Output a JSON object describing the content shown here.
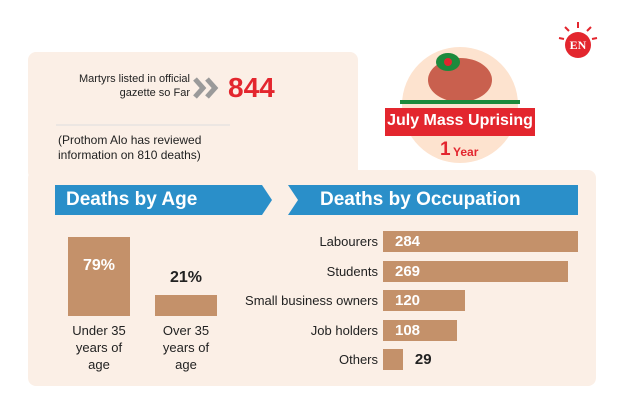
{
  "header": {
    "label": "Martyrs listed in official gazette so Far",
    "total": 844,
    "note": "(Prothom Alo has reviewed information on 810 deaths)"
  },
  "badge": {
    "title": "July Mass Uprising",
    "year_number": "1",
    "year_word": "Year",
    "logo": "EN"
  },
  "chart_data": [
    {
      "type": "bar",
      "title": "Deaths by Age",
      "categories": [
        "Under 35 years of age",
        "Over 35 years of age"
      ],
      "values": [
        79,
        21
      ],
      "value_labels": [
        "79%",
        "21%"
      ],
      "color": "#c4916a"
    },
    {
      "type": "barh",
      "title": "Deaths by Occupation",
      "categories": [
        "Labourers",
        "Students",
        "Small business owners",
        "Job holders",
        "Others"
      ],
      "values": [
        284,
        269,
        120,
        108,
        29
      ],
      "color": "#c4916a"
    }
  ]
}
